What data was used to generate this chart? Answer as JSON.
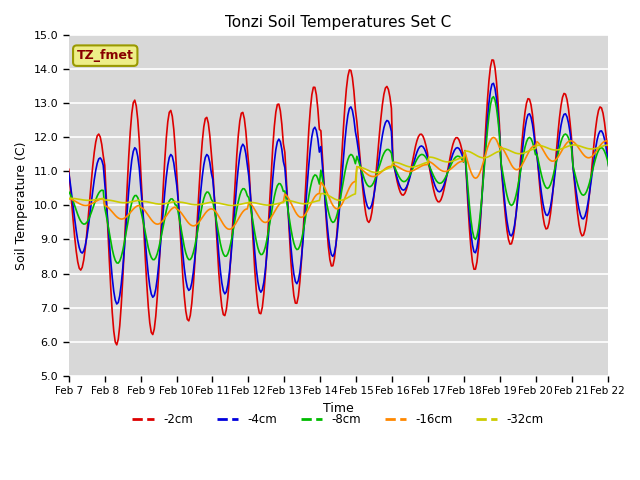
{
  "title": "Tonzi Soil Temperatures Set C",
  "xlabel": "Time",
  "ylabel": "Soil Temperature (C)",
  "ylim": [
    5.0,
    15.0
  ],
  "yticks": [
    5.0,
    6.0,
    7.0,
    8.0,
    9.0,
    10.0,
    11.0,
    12.0,
    13.0,
    14.0,
    15.0
  ],
  "annotation": "TZ_fmet",
  "bg_color": "#d8d8d8",
  "grid_color": "white",
  "series_colors": {
    "-2cm": "#dd0000",
    "-4cm": "#0000dd",
    "-8cm": "#00bb00",
    "-16cm": "#ff8800",
    "-32cm": "#cccc00"
  },
  "x_labels": [
    "Feb 7",
    "Feb 8",
    "Feb 9",
    "Feb 10",
    "Feb 11",
    "Feb 12",
    "Feb 13",
    "Feb 14",
    "Feb 15",
    "Feb 16",
    "Feb 17",
    "Feb 18",
    "Feb 19",
    "Feb 20",
    "Feb 21",
    "Feb 22"
  ],
  "figsize": [
    6.4,
    4.8
  ],
  "dpi": 100
}
